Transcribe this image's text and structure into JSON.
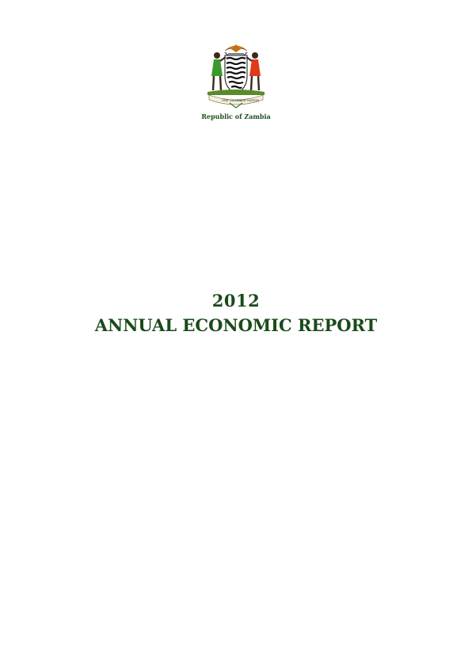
{
  "header": {
    "country": "Republic of Zambia",
    "emblem_motto_left": "ONE ZAMBIA",
    "emblem_motto_right": "ONE NATION",
    "emblem_icon": "coat-of-arms-emblem"
  },
  "title": {
    "year": "2012",
    "report": "ANNUAL ECONOMIC REPORT"
  },
  "colors": {
    "title_green": "#1a4a1a",
    "eagle_orange": "#e08a1e",
    "figure_left": "#3a9a2a",
    "figure_right": "#e03a1a"
  }
}
